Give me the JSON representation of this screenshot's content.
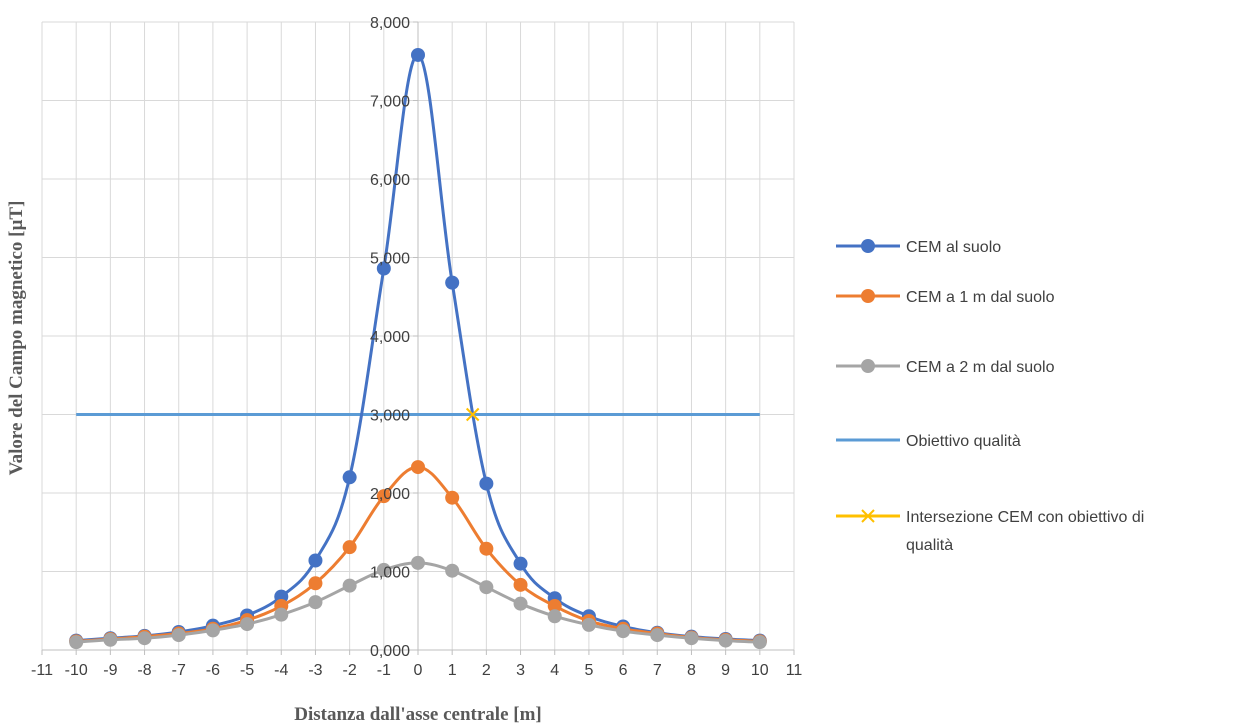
{
  "chart_data": {
    "type": "line",
    "xlabel": "Distanza dall'asse centrale [m]",
    "ylabel": "Valore del Campo magnetico [µT]",
    "xlim": [
      -11,
      11
    ],
    "ylim": [
      0,
      8
    ],
    "x_ticks": [
      "-11",
      "-10",
      "-9",
      "-8",
      "-7",
      "-6",
      "-5",
      "-4",
      "-3",
      "-2",
      "-1",
      "0",
      "1",
      "2",
      "3",
      "4",
      "5",
      "6",
      "7",
      "8",
      "9",
      "10",
      "11"
    ],
    "y_ticks": [
      "0,000",
      "1,000",
      "2,000",
      "3,000",
      "4,000",
      "5,000",
      "6,000",
      "7,000",
      "8,000"
    ],
    "grid": true,
    "legend_position": "right",
    "series": [
      {
        "name": "CEM al suolo",
        "color": "#4472C4",
        "marker": "circle",
        "smooth": true,
        "x": [
          -10,
          -9,
          -8,
          -7,
          -6,
          -5,
          -4,
          -3,
          -2,
          -1,
          0,
          1,
          2,
          3,
          4,
          5,
          6,
          7,
          8,
          9,
          10
        ],
        "y": [
          0.12,
          0.15,
          0.18,
          0.23,
          0.31,
          0.44,
          0.68,
          1.14,
          2.2,
          4.86,
          7.58,
          4.68,
          2.12,
          1.1,
          0.66,
          0.43,
          0.3,
          0.22,
          0.17,
          0.14,
          0.12
        ]
      },
      {
        "name": "CEM a 1 m dal suolo",
        "color": "#ED7D31",
        "marker": "circle",
        "smooth": true,
        "x": [
          -10,
          -9,
          -8,
          -7,
          -6,
          -5,
          -4,
          -3,
          -2,
          -1,
          0,
          1,
          2,
          3,
          4,
          5,
          6,
          7,
          8,
          9,
          10
        ],
        "y": [
          0.11,
          0.14,
          0.17,
          0.21,
          0.27,
          0.38,
          0.56,
          0.85,
          1.31,
          1.96,
          2.33,
          1.94,
          1.29,
          0.83,
          0.56,
          0.37,
          0.27,
          0.21,
          0.16,
          0.13,
          0.11
        ]
      },
      {
        "name": "CEM a 2 m dal suolo",
        "color": "#A5A5A5",
        "marker": "circle",
        "smooth": true,
        "x": [
          -10,
          -9,
          -8,
          -7,
          -6,
          -5,
          -4,
          -3,
          -2,
          -1,
          0,
          1,
          2,
          3,
          4,
          5,
          6,
          7,
          8,
          9,
          10
        ],
        "y": [
          0.1,
          0.13,
          0.15,
          0.19,
          0.25,
          0.33,
          0.45,
          0.61,
          0.82,
          1.02,
          1.11,
          1.01,
          0.8,
          0.59,
          0.43,
          0.32,
          0.24,
          0.19,
          0.15,
          0.12,
          0.1
        ]
      },
      {
        "name": "Obiettivo qualità",
        "color": "#5B9BD5",
        "marker": "none",
        "smooth": false,
        "x": [
          -10,
          10
        ],
        "y": [
          3,
          3
        ]
      },
      {
        "name": "Intersezione CEM con obiettivo di qualità",
        "color": "#FFC000",
        "marker": "x",
        "smooth": false,
        "x": [
          1.6
        ],
        "y": [
          3
        ]
      }
    ]
  }
}
